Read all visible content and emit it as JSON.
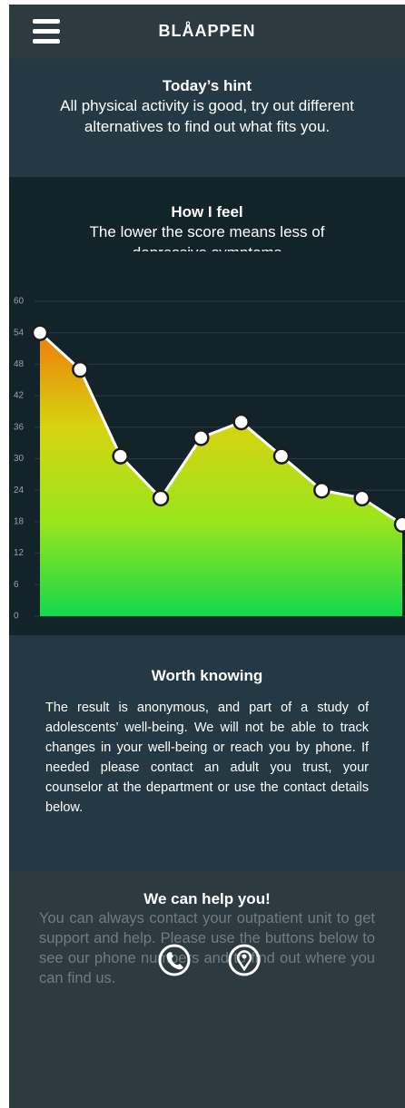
{
  "header": {
    "title": "BLÅAPPEN"
  },
  "hint": {
    "title": "Today’s hint",
    "text": "All physical activity is good, try out different alternatives to find out what fits you."
  },
  "feel": {
    "title": "How I feel",
    "text": "The lower the score means less of depressive symptoms"
  },
  "chart_data": {
    "type": "line",
    "values": [
      54,
      47,
      30.5,
      22.5,
      34,
      37,
      30.5,
      24,
      22.5,
      17.5
    ],
    "ylim": [
      0,
      60
    ],
    "yticks": [
      0,
      6,
      12,
      18,
      24,
      30,
      36,
      42,
      48,
      54,
      60
    ],
    "grid": true,
    "gradient": [
      "#ef7d0c",
      "#d6d410",
      "#9ae51c",
      "#13d84c"
    ],
    "line_color": "#ffffff"
  },
  "worth": {
    "title": "Worth knowing",
    "text": "The result is anonymous, and part of a study of adolescents’ well-being. We will not be able to track changes in your well-being or reach you by phone. If needed please contact an adult you trust, your counselor at the department or use the contact details below."
  },
  "help": {
    "title": "We can help you!",
    "text": "You can always contact your outpatient unit to get support and help. Please use the buttons below to see our phone numbers and to find out where you can find us."
  }
}
